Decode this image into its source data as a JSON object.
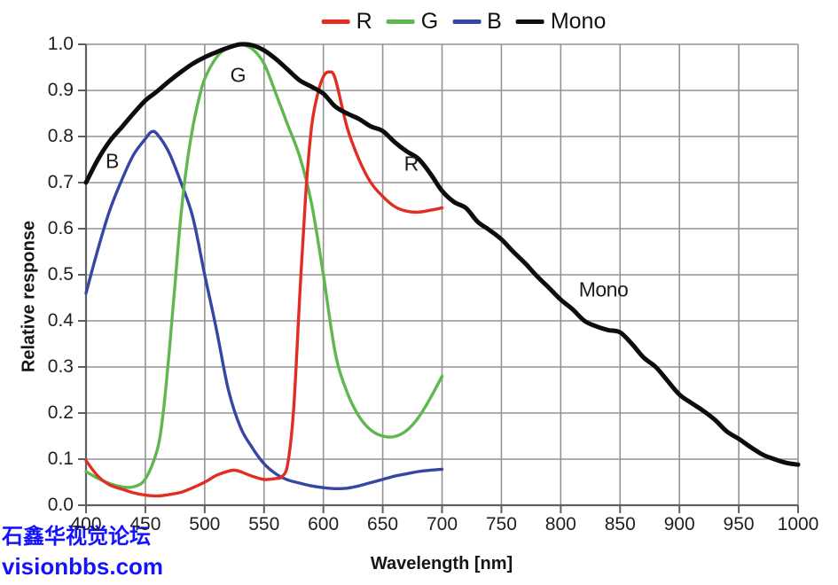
{
  "legend": {
    "items": [
      {
        "label": "R",
        "color": "#e22d23"
      },
      {
        "label": "G",
        "color": "#5fb84f"
      },
      {
        "label": "B",
        "color": "#3646a3"
      },
      {
        "label": "Mono",
        "color": "#0d0d0d"
      }
    ]
  },
  "watermark": {
    "line1": "石鑫华视觉论坛",
    "line2": "visionbbs.com",
    "color": "#1512fc"
  },
  "chart_data": {
    "type": "line",
    "title": "",
    "xlabel": "Wavelength [nm]",
    "ylabel": "Relative response",
    "xlim": [
      400,
      1000
    ],
    "ylim": [
      0,
      1.0
    ],
    "x_ticks": [
      400,
      450,
      500,
      550,
      600,
      650,
      700,
      750,
      800,
      850,
      900,
      950,
      1000
    ],
    "y_ticks": [
      0.0,
      0.1,
      0.2,
      0.3,
      0.4,
      0.5,
      0.6,
      0.7,
      0.8,
      0.9,
      1.0
    ],
    "grid": true,
    "grid_color": "#949494",
    "axis_color": "#606060",
    "legend_position": "top-center",
    "series": [
      {
        "name": "B",
        "color": "#3646a3",
        "width": 3.4,
        "x": [
          400,
          410,
          420,
          430,
          440,
          450,
          455,
          460,
          470,
          480,
          490,
          500,
          510,
          520,
          530,
          540,
          550,
          560,
          570,
          580,
          590,
          600,
          610,
          620,
          630,
          640,
          650,
          660,
          670,
          680,
          690,
          700
        ],
        "y": [
          0.46,
          0.555,
          0.64,
          0.705,
          0.76,
          0.795,
          0.81,
          0.805,
          0.765,
          0.7,
          0.625,
          0.5,
          0.38,
          0.25,
          0.17,
          0.125,
          0.09,
          0.068,
          0.055,
          0.048,
          0.042,
          0.038,
          0.036,
          0.037,
          0.042,
          0.049,
          0.056,
          0.063,
          0.068,
          0.073,
          0.076,
          0.078
        ]
      },
      {
        "name": "G",
        "color": "#5fb84f",
        "width": 3.4,
        "x": [
          400,
          410,
          420,
          430,
          440,
          450,
          460,
          465,
          470,
          475,
          480,
          485,
          490,
          495,
          500,
          510,
          520,
          530,
          540,
          550,
          560,
          570,
          580,
          590,
          600,
          610,
          620,
          630,
          640,
          650,
          660,
          670,
          680,
          690,
          700
        ],
        "y": [
          0.073,
          0.058,
          0.047,
          0.04,
          0.04,
          0.057,
          0.12,
          0.2,
          0.33,
          0.48,
          0.63,
          0.74,
          0.82,
          0.88,
          0.925,
          0.972,
          0.993,
          1.0,
          0.99,
          0.958,
          0.893,
          0.825,
          0.757,
          0.655,
          0.5,
          0.33,
          0.245,
          0.193,
          0.163,
          0.15,
          0.149,
          0.162,
          0.19,
          0.232,
          0.28
        ]
      },
      {
        "name": "R",
        "color": "#e22d23",
        "width": 3.4,
        "x": [
          400,
          410,
          420,
          430,
          440,
          450,
          460,
          470,
          480,
          490,
          500,
          510,
          520,
          525,
          530,
          540,
          550,
          560,
          565,
          570,
          575,
          580,
          585,
          590,
          595,
          600,
          605,
          610,
          620,
          630,
          640,
          650,
          660,
          670,
          680,
          690,
          700
        ],
        "y": [
          0.097,
          0.063,
          0.044,
          0.035,
          0.027,
          0.022,
          0.02,
          0.023,
          0.028,
          0.038,
          0.05,
          0.065,
          0.074,
          0.076,
          0.073,
          0.063,
          0.056,
          0.058,
          0.062,
          0.09,
          0.21,
          0.45,
          0.67,
          0.82,
          0.89,
          0.93,
          0.94,
          0.925,
          0.82,
          0.75,
          0.7,
          0.67,
          0.648,
          0.638,
          0.636,
          0.64,
          0.645
        ]
      },
      {
        "name": "Mono",
        "color": "#0d0d0d",
        "width": 5,
        "x": [
          400,
          410,
          420,
          430,
          440,
          450,
          460,
          470,
          480,
          490,
          500,
          510,
          520,
          530,
          540,
          550,
          560,
          570,
          580,
          590,
          600,
          610,
          620,
          630,
          640,
          650,
          660,
          670,
          680,
          690,
          700,
          710,
          720,
          730,
          740,
          750,
          760,
          770,
          780,
          790,
          800,
          810,
          820,
          830,
          840,
          850,
          860,
          870,
          880,
          890,
          900,
          910,
          920,
          930,
          940,
          950,
          960,
          970,
          980,
          990,
          1000
        ],
        "y": [
          0.7,
          0.75,
          0.79,
          0.82,
          0.85,
          0.878,
          0.898,
          0.92,
          0.94,
          0.958,
          0.972,
          0.983,
          0.993,
          1.0,
          0.998,
          0.987,
          0.968,
          0.945,
          0.922,
          0.908,
          0.893,
          0.865,
          0.85,
          0.838,
          0.822,
          0.812,
          0.788,
          0.768,
          0.752,
          0.72,
          0.682,
          0.658,
          0.645,
          0.615,
          0.597,
          0.577,
          0.55,
          0.525,
          0.497,
          0.472,
          0.446,
          0.425,
          0.4,
          0.388,
          0.38,
          0.375,
          0.35,
          0.32,
          0.3,
          0.27,
          0.24,
          0.222,
          0.205,
          0.185,
          0.16,
          0.144,
          0.126,
          0.11,
          0.1,
          0.092,
          0.088
        ]
      }
    ],
    "annotations": [
      {
        "text": "B",
        "x": 422,
        "y": 0.746
      },
      {
        "text": "G",
        "x": 528,
        "y": 0.932
      },
      {
        "text": "R",
        "x": 674,
        "y": 0.74
      },
      {
        "text": "Mono",
        "x": 836,
        "y": 0.468
      }
    ]
  }
}
